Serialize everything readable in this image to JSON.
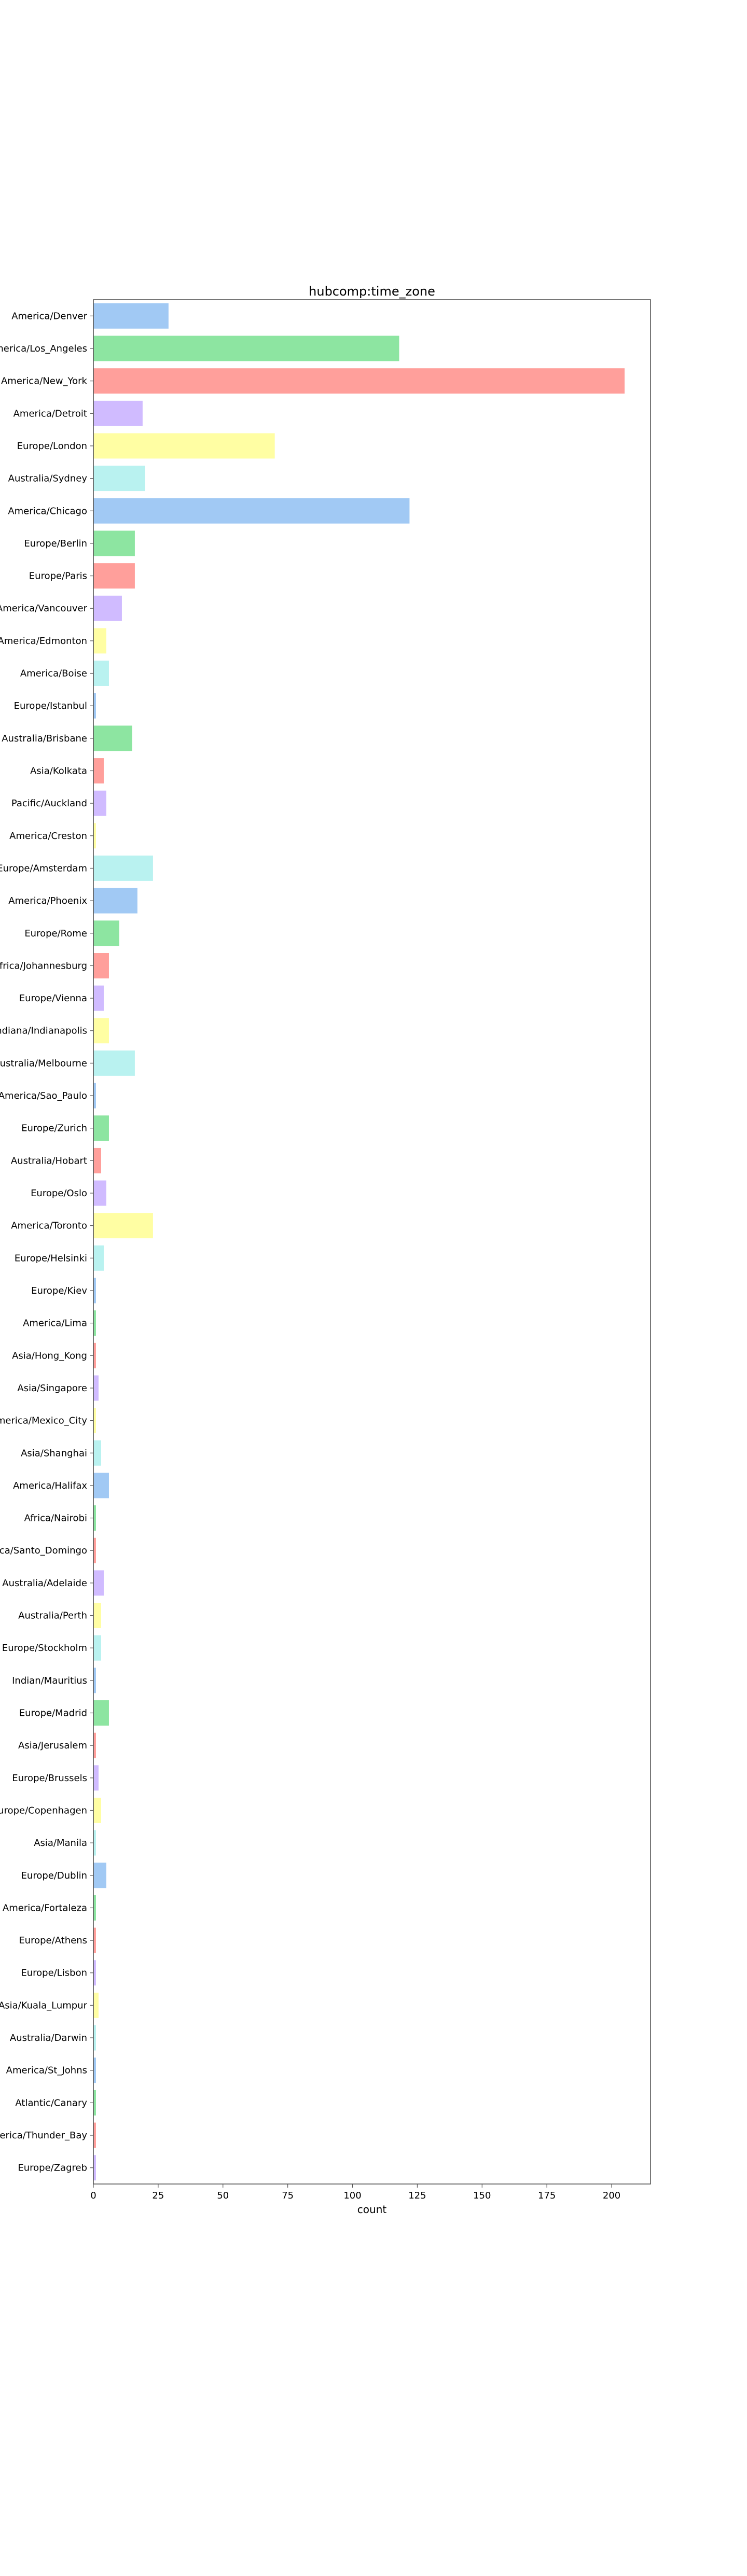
{
  "chart_data": {
    "type": "bar",
    "orientation": "horizontal",
    "title": "hubcomp:time_zone",
    "xlabel": "count",
    "ylabel": "",
    "xlim": [
      0,
      215
    ],
    "xticks": [
      0,
      25,
      50,
      75,
      100,
      125,
      150,
      175,
      200
    ],
    "grid": false,
    "legend": "none",
    "palette": [
      "#a1c9f4",
      "#8de5a1",
      "#ff9f9b",
      "#d0bbff",
      "#fffea3",
      "#b9f2f0"
    ],
    "categories": [
      "America/Denver",
      "America/Los_Angeles",
      "America/New_York",
      "America/Detroit",
      "Europe/London",
      "Australia/Sydney",
      "America/Chicago",
      "Europe/Berlin",
      "Europe/Paris",
      "America/Vancouver",
      "America/Edmonton",
      "America/Boise",
      "Europe/Istanbul",
      "Australia/Brisbane",
      "Asia/Kolkata",
      "Pacific/Auckland",
      "America/Creston",
      "Europe/Amsterdam",
      "America/Phoenix",
      "Europe/Rome",
      "Africa/Johannesburg",
      "Europe/Vienna",
      "America/Indiana/Indianapolis",
      "Australia/Melbourne",
      "America/Sao_Paulo",
      "Europe/Zurich",
      "Australia/Hobart",
      "Europe/Oslo",
      "America/Toronto",
      "Europe/Helsinki",
      "Europe/Kiev",
      "America/Lima",
      "Asia/Hong_Kong",
      "Asia/Singapore",
      "America/Mexico_City",
      "Asia/Shanghai",
      "America/Halifax",
      "Africa/Nairobi",
      "America/Santo_Domingo",
      "Australia/Adelaide",
      "Australia/Perth",
      "Europe/Stockholm",
      "Indian/Mauritius",
      "Europe/Madrid",
      "Asia/Jerusalem",
      "Europe/Brussels",
      "Europe/Copenhagen",
      "Asia/Manila",
      "Europe/Dublin",
      "America/Fortaleza",
      "Europe/Athens",
      "Europe/Lisbon",
      "Asia/Kuala_Lumpur",
      "Australia/Darwin",
      "America/St_Johns",
      "Atlantic/Canary",
      "America/Thunder_Bay",
      "Europe/Zagreb"
    ],
    "values": [
      29,
      118,
      205,
      19,
      70,
      20,
      122,
      16,
      16,
      11,
      5,
      6,
      1,
      15,
      4,
      5,
      1,
      23,
      17,
      10,
      6,
      4,
      6,
      16,
      1,
      6,
      3,
      5,
      23,
      4,
      1,
      1,
      1,
      2,
      1,
      3,
      6,
      1,
      1,
      4,
      3,
      3,
      1,
      6,
      1,
      2,
      3,
      1,
      5,
      1,
      1,
      1,
      2,
      1,
      1,
      1,
      1,
      1
    ]
  }
}
